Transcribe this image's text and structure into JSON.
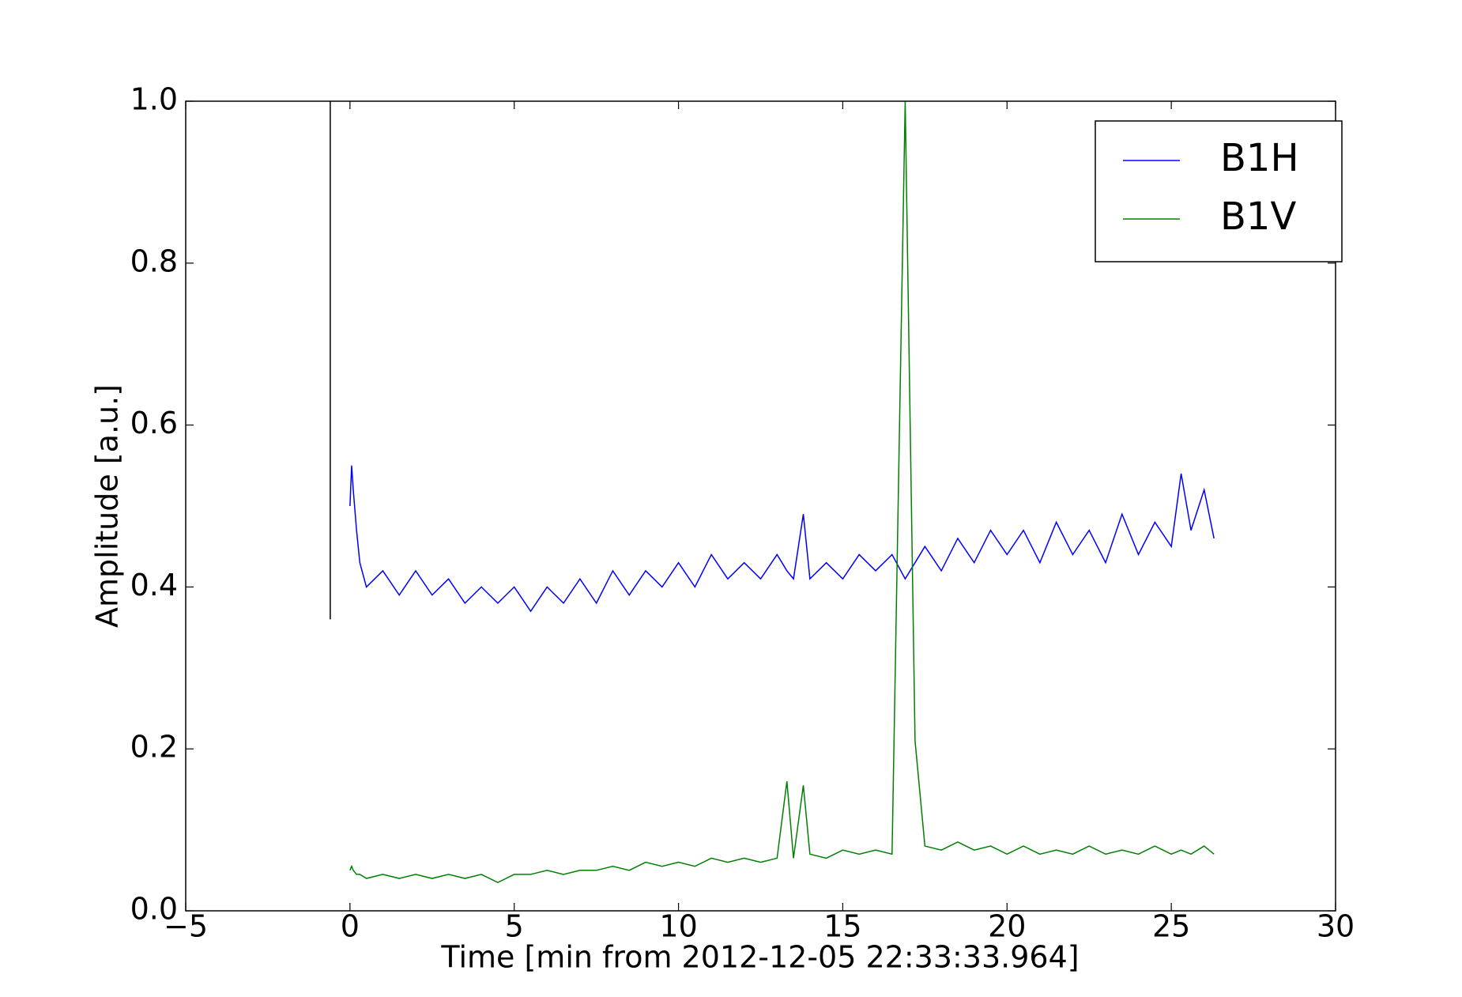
{
  "chart_data": {
    "type": "line",
    "xlabel": "Time [min from 2012-12-05 22:33:33.964]",
    "ylabel": "Amplitude [a.u.]",
    "xlim": [
      -5,
      30
    ],
    "xticks": [
      {
        "value": -5,
        "label": "−5"
      },
      0,
      5,
      10,
      15,
      20,
      25,
      30
    ],
    "ylim": [
      0,
      1
    ],
    "yticks": [
      {
        "value": 0,
        "label": "0.0"
      },
      0.2,
      0.4,
      0.6,
      0.8,
      {
        "value": 1,
        "label": "1.0"
      }
    ],
    "legend": "upper right",
    "x": [
      0,
      0.05,
      0.1,
      0.2,
      0.3,
      0.5,
      1,
      1.5,
      2,
      2.5,
      3,
      3.5,
      4,
      4.5,
      5,
      5.5,
      6,
      6.5,
      7,
      7.5,
      8,
      8.5,
      9,
      9.5,
      10,
      10.5,
      11,
      11.5,
      12,
      12.5,
      13,
      13.3,
      13.5,
      13.8,
      14,
      14.5,
      15,
      15.5,
      16,
      16.5,
      16.9,
      17.2,
      17.5,
      18,
      18.5,
      19,
      19.5,
      20,
      20.5,
      21,
      21.5,
      22,
      22.5,
      23,
      23.5,
      24,
      24.5,
      25,
      25.3,
      25.6,
      26,
      26.3
    ],
    "series": [
      {
        "name": "B1H",
        "color": "#0000ff",
        "values": [
          0.5,
          0.55,
          0.52,
          0.47,
          0.43,
          0.4,
          0.42,
          0.39,
          0.42,
          0.39,
          0.41,
          0.38,
          0.4,
          0.38,
          0.4,
          0.37,
          0.4,
          0.38,
          0.41,
          0.38,
          0.42,
          0.39,
          0.42,
          0.4,
          0.43,
          0.4,
          0.44,
          0.41,
          0.43,
          0.41,
          0.44,
          0.42,
          0.41,
          0.49,
          0.41,
          0.43,
          0.41,
          0.44,
          0.42,
          0.44,
          0.41,
          0.43,
          0.45,
          0.42,
          0.46,
          0.43,
          0.47,
          0.44,
          0.47,
          0.43,
          0.48,
          0.44,
          0.47,
          0.43,
          0.49,
          0.44,
          0.48,
          0.45,
          0.54,
          0.47,
          0.52,
          0.46
        ]
      },
      {
        "name": "B1V",
        "color": "#008000",
        "values": [
          0.05,
          0.055,
          0.05,
          0.045,
          0.045,
          0.04,
          0.045,
          0.04,
          0.045,
          0.04,
          0.045,
          0.04,
          0.045,
          0.035,
          0.045,
          0.045,
          0.05,
          0.045,
          0.05,
          0.05,
          0.055,
          0.05,
          0.06,
          0.055,
          0.06,
          0.055,
          0.065,
          0.06,
          0.065,
          0.06,
          0.065,
          0.16,
          0.065,
          0.155,
          0.07,
          0.065,
          0.075,
          0.07,
          0.075,
          0.07,
          1.0,
          0.21,
          0.08,
          0.075,
          0.085,
          0.075,
          0.08,
          0.07,
          0.08,
          0.07,
          0.075,
          0.07,
          0.08,
          0.07,
          0.075,
          0.07,
          0.08,
          0.07,
          0.075,
          0.07,
          0.08,
          0.07
        ]
      }
    ],
    "markers": [
      {
        "x": -0.6,
        "y": [
          0.36,
          1.0
        ],
        "color": "#000000"
      }
    ]
  }
}
